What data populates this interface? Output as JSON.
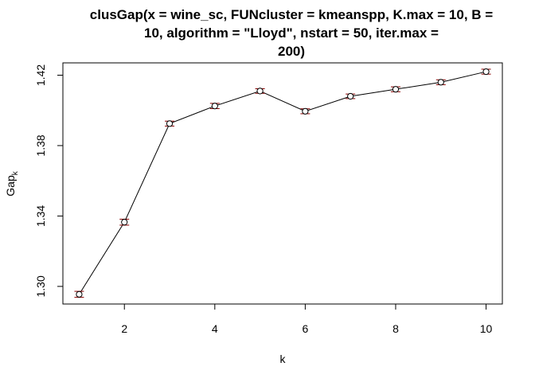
{
  "chart_data": {
    "type": "line",
    "title_lines": [
      "clusGap(x = wine_sc, FUNcluster = kmeanspp, K.max = 10, B =",
      "10, algorithm = \"Lloyd\", nstart = 50, iter.max =",
      "200)"
    ],
    "xlabel": "k",
    "ylabel": "Gap",
    "ylabel_subscript": "k",
    "x": [
      1,
      2,
      3,
      4,
      5,
      6,
      7,
      8,
      9,
      10
    ],
    "y": [
      1.2955,
      1.3365,
      1.3925,
      1.4025,
      1.411,
      1.3995,
      1.408,
      1.412,
      1.416,
      1.422
    ],
    "se": [
      0.0017,
      0.0017,
      0.0014,
      0.0015,
      0.0013,
      0.0014,
      0.0013,
      0.0014,
      0.0014,
      0.0014
    ],
    "xlim": [
      0.64,
      10.36
    ],
    "ylim": [
      1.29,
      1.427
    ],
    "xticks": [
      2,
      4,
      6,
      8,
      10
    ],
    "yticks": [
      1.3,
      1.34,
      1.38,
      1.42
    ],
    "ytick_labels": [
      "1.30",
      "1.34",
      "1.38",
      "1.42"
    ],
    "point_color": "#000000",
    "errorbar_color": "#8B0000",
    "grid": false
  }
}
